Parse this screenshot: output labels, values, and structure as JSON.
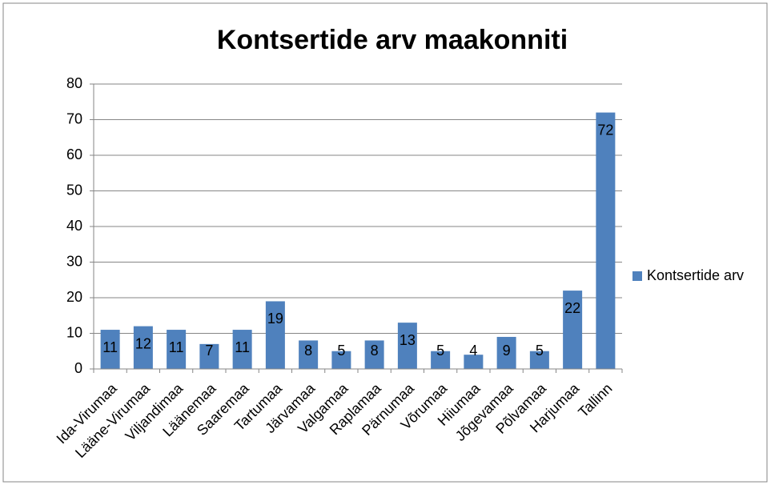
{
  "chart_data": {
    "type": "bar",
    "title": "Kontsertide arv maakonniti",
    "categories": [
      "Ida-Virumaa",
      "Lääne-Virumaa",
      "Viljandimaa",
      "Läänemaa",
      "Saaremaa",
      "Tartumaa",
      "Järvamaa",
      "Valgamaa",
      "Raplamaa",
      "Pärnumaa",
      "Võrumaa",
      "Hiiumaa",
      "Jõgevamaa",
      "Põlvamaa",
      "Harjumaa",
      "Tallinn"
    ],
    "series": [
      {
        "name": "Kontsertide arv",
        "color": "#4f81bd",
        "values": [
          11,
          12,
          11,
          7,
          11,
          19,
          8,
          5,
          8,
          13,
          5,
          4,
          9,
          5,
          22,
          72
        ]
      }
    ],
    "ylim": [
      0,
      80
    ],
    "yticks": [
      0,
      10,
      20,
      30,
      40,
      50,
      60,
      70,
      80
    ],
    "grid": true,
    "legend": "right"
  }
}
